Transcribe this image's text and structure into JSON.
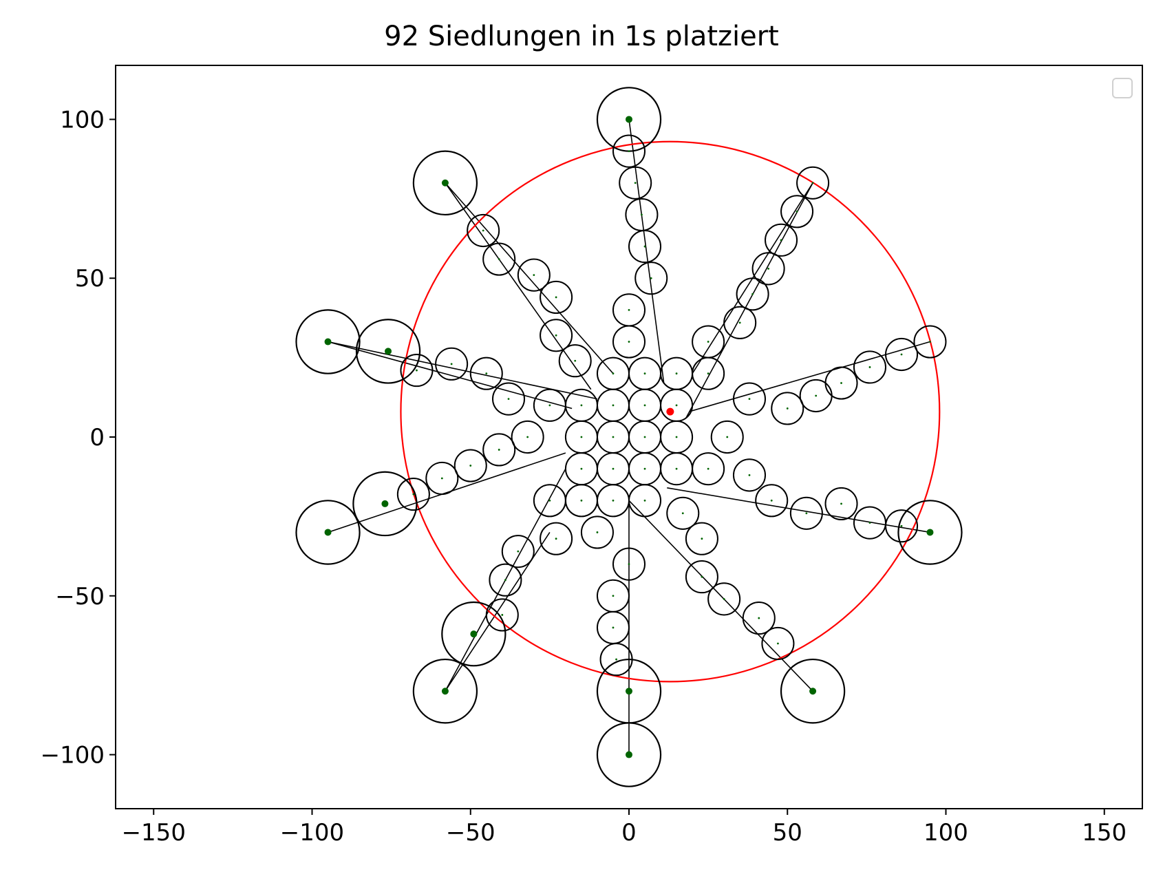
{
  "chart_data": {
    "type": "scatter",
    "title": "92 Siedlungen in 1s platziert",
    "xlabel": "",
    "ylabel": "",
    "xlim": [
      -162,
      162
    ],
    "ylim": [
      -117,
      117
    ],
    "x_ticks": [
      -150,
      -100,
      -50,
      0,
      50,
      100,
      150
    ],
    "y_ticks": [
      -100,
      -50,
      0,
      50,
      100
    ],
    "x_tick_labels": [
      "−150",
      "−100",
      "−50",
      "0",
      "50",
      "100",
      "150"
    ],
    "y_tick_labels": [
      "−100",
      "−50",
      "0",
      "50",
      "100"
    ],
    "grid": false,
    "legend": {
      "placement": "top-right",
      "entries": []
    },
    "colors": {
      "settlement_circle": "#000000",
      "connection_line": "#000000",
      "settlement_center": "#006400",
      "bounding_circle": "#ff0000",
      "bounding_center": "#ff0000"
    },
    "bounding_circle": {
      "center": [
        13,
        8
      ],
      "radius": 85
    },
    "major_settlements": [
      {
        "x": 0,
        "y": 100,
        "r": 10
      },
      {
        "x": -58,
        "y": 80,
        "r": 10
      },
      {
        "x": -95,
        "y": 30,
        "r": 10
      },
      {
        "x": -95,
        "y": -30,
        "r": 10
      },
      {
        "x": -58,
        "y": -80,
        "r": 10
      },
      {
        "x": 0,
        "y": -80,
        "r": 10
      },
      {
        "x": 0,
        "y": -100,
        "r": 10
      },
      {
        "x": 58,
        "y": -80,
        "r": 10
      },
      {
        "x": 95,
        "y": -30,
        "r": 10
      },
      {
        "x": -76,
        "y": 27,
        "r": 10
      },
      {
        "x": -77,
        "y": -21,
        "r": 10
      },
      {
        "x": -49,
        "y": -62,
        "r": 10
      }
    ],
    "settlements": [
      {
        "x": -5,
        "y": 20
      },
      {
        "x": 5,
        "y": 20
      },
      {
        "x": -15,
        "y": 10
      },
      {
        "x": -5,
        "y": 10
      },
      {
        "x": 5,
        "y": 10
      },
      {
        "x": 15,
        "y": 10
      },
      {
        "x": -15,
        "y": 0
      },
      {
        "x": -5,
        "y": 0
      },
      {
        "x": 5,
        "y": 0
      },
      {
        "x": 15,
        "y": 0
      },
      {
        "x": -15,
        "y": -10
      },
      {
        "x": -5,
        "y": -10
      },
      {
        "x": 5,
        "y": -10
      },
      {
        "x": 15,
        "y": -10
      },
      {
        "x": -15,
        "y": -20
      },
      {
        "x": -5,
        "y": -20
      },
      {
        "x": 5,
        "y": -20
      },
      {
        "x": 15,
        "y": 20
      },
      {
        "x": 0,
        "y": 90
      },
      {
        "x": 2,
        "y": 80
      },
      {
        "x": 4,
        "y": 70
      },
      {
        "x": 5,
        "y": 60
      },
      {
        "x": 7,
        "y": 50
      },
      {
        "x": 0,
        "y": 40
      },
      {
        "x": 0,
        "y": 30
      },
      {
        "x": 58,
        "y": 80
      },
      {
        "x": 53,
        "y": 71
      },
      {
        "x": 48,
        "y": 62
      },
      {
        "x": 44,
        "y": 53
      },
      {
        "x": 39,
        "y": 45
      },
      {
        "x": 35,
        "y": 36
      },
      {
        "x": 25,
        "y": 30
      },
      {
        "x": 25,
        "y": 20
      },
      {
        "x": 95,
        "y": 30
      },
      {
        "x": 86,
        "y": 26
      },
      {
        "x": 76,
        "y": 22
      },
      {
        "x": 67,
        "y": 17
      },
      {
        "x": 59,
        "y": 13
      },
      {
        "x": 50,
        "y": 9
      },
      {
        "x": 38,
        "y": 12
      },
      {
        "x": 31,
        "y": 0
      },
      {
        "x": 86,
        "y": -28
      },
      {
        "x": 76,
        "y": -27
      },
      {
        "x": 67,
        "y": -21
      },
      {
        "x": 56,
        "y": -24
      },
      {
        "x": 45,
        "y": -20
      },
      {
        "x": 38,
        "y": -12
      },
      {
        "x": 25,
        "y": -10
      },
      {
        "x": 47,
        "y": -65
      },
      {
        "x": 41,
        "y": -57
      },
      {
        "x": 30,
        "y": -51
      },
      {
        "x": 23,
        "y": -44
      },
      {
        "x": 23,
        "y": -32
      },
      {
        "x": 17,
        "y": -24
      },
      {
        "x": 0,
        "y": -40
      },
      {
        "x": -5,
        "y": -50
      },
      {
        "x": -5,
        "y": -60
      },
      {
        "x": -4,
        "y": -70
      },
      {
        "x": -10,
        "y": -30
      },
      {
        "x": -40,
        "y": -56
      },
      {
        "x": -39,
        "y": -45
      },
      {
        "x": -35,
        "y": -36
      },
      {
        "x": -23,
        "y": -32
      },
      {
        "x": -25,
        "y": -20
      },
      {
        "x": -68,
        "y": -18
      },
      {
        "x": -59,
        "y": -13
      },
      {
        "x": -50,
        "y": -9
      },
      {
        "x": -41,
        "y": -4
      },
      {
        "x": -32,
        "y": 0
      },
      {
        "x": -67,
        "y": 21
      },
      {
        "x": -56,
        "y": 23
      },
      {
        "x": -45,
        "y": 20
      },
      {
        "x": -38,
        "y": 12
      },
      {
        "x": -25,
        "y": 10
      },
      {
        "x": -46,
        "y": 65
      },
      {
        "x": -41,
        "y": 56
      },
      {
        "x": -30,
        "y": 51
      },
      {
        "x": -23,
        "y": 44
      },
      {
        "x": -23,
        "y": 32
      },
      {
        "x": -17,
        "y": 24
      }
    ],
    "connections": [
      [
        0,
        100,
        11,
        17
      ],
      [
        58,
        80,
        18,
        6
      ],
      [
        95,
        30,
        19,
        8
      ],
      [
        95,
        -30,
        12,
        -16
      ],
      [
        58,
        -80,
        0,
        -20
      ],
      [
        0,
        -100,
        0,
        -20
      ],
      [
        -58,
        -80,
        -20,
        -10
      ],
      [
        -95,
        -30,
        -20,
        -5
      ],
      [
        -95,
        30,
        -18,
        9
      ],
      [
        -58,
        80,
        -12,
        15
      ],
      [
        -58,
        -80,
        -25,
        -30
      ],
      [
        -95,
        30,
        -10,
        12
      ],
      [
        58,
        80,
        20,
        20
      ],
      [
        -58,
        80,
        -5,
        20
      ]
    ]
  }
}
